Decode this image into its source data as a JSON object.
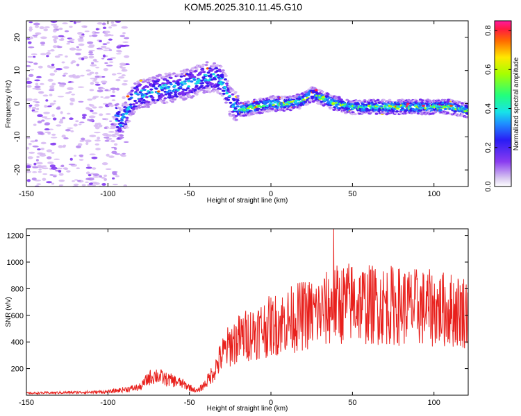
{
  "title": "KOM5.2025.310.11.45.G10",
  "chart_data": [
    {
      "type": "heatmap",
      "xlabel": "Height of straight line (km)",
      "ylabel": "Frequency (Hz)",
      "xlim": [
        -150,
        121
      ],
      "ylim": [
        -25,
        25
      ],
      "xticks": [
        -150,
        -100,
        -50,
        0,
        50,
        100
      ],
      "yticks": [
        -20,
        -10,
        0,
        10,
        20
      ],
      "colorbar": {
        "label": "Normalized spectral amplitude",
        "range": [
          0,
          0.85
        ],
        "ticks": [
          0.0,
          0.2,
          0.4,
          0.6,
          0.8
        ]
      },
      "ridge": {
        "description_points_x": [
          -150,
          -100,
          -92,
          -85,
          -80,
          -70,
          -60,
          -50,
          -45,
          -40,
          -35,
          -30,
          -25,
          -20,
          -10,
          0,
          10,
          20,
          25,
          30,
          40,
          50,
          60,
          70,
          80,
          90,
          100,
          110,
          121
        ],
        "frequency_hz": [
          0,
          0,
          -6,
          1,
          3,
          4,
          5,
          6,
          7,
          8,
          8,
          7,
          1,
          -2,
          -1,
          0,
          0,
          1,
          3,
          2,
          0,
          -1,
          -1,
          -1,
          -1,
          -1,
          -1,
          -1,
          -2
        ]
      }
    },
    {
      "type": "line",
      "xlabel": "Height of straight line (km)",
      "ylabel": "SNR (v/v)",
      "xlim": [
        -150,
        121
      ],
      "ylim": [
        0,
        1250
      ],
      "xticks": [
        -150,
        -100,
        -50,
        0,
        50,
        100
      ],
      "yticks": [
        200,
        400,
        600,
        800,
        1000,
        1200
      ],
      "series": [
        {
          "color": "#e8201c",
          "x": [
            -150,
            -100,
            -80,
            -75,
            -70,
            -65,
            -60,
            -55,
            -50,
            -45,
            -40,
            -35,
            -30,
            -25,
            -20,
            -10,
            0,
            10,
            20,
            30,
            40,
            50,
            60,
            70,
            80,
            90,
            100,
            110,
            121
          ],
          "y": [
            15,
            25,
            60,
            130,
            150,
            120,
            110,
            90,
            60,
            30,
            90,
            180,
            300,
            380,
            420,
            480,
            520,
            560,
            600,
            620,
            680,
            700,
            680,
            680,
            670,
            660,
            650,
            640,
            630
          ]
        }
      ]
    }
  ]
}
